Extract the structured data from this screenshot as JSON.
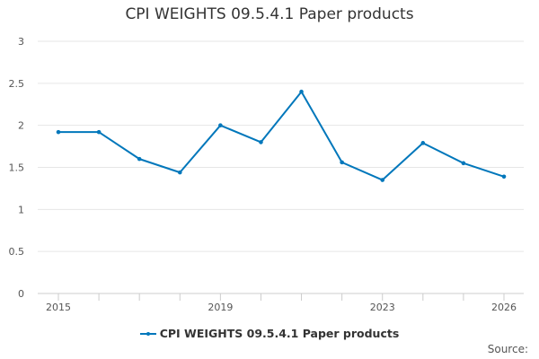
{
  "colors": {
    "series": "#0077bb",
    "grid": "#e6e6e6",
    "axis": "#cccccc"
  },
  "source_label": "Source:",
  "chart_data": {
    "type": "line",
    "title": "CPI WEIGHTS 09.5.4.1 Paper products",
    "xlabel": "",
    "ylabel": "",
    "x": [
      2015,
      2016,
      2017,
      2018,
      2019,
      2020,
      2021,
      2022,
      2023,
      2024,
      2025,
      2026
    ],
    "x_tick_labels": [
      "2015",
      "2019",
      "2023",
      "2026"
    ],
    "y_ticks": [
      0,
      0.5,
      1,
      1.5,
      2,
      2.5,
      3
    ],
    "y_tick_labels": [
      "0",
      "0.5",
      "1",
      "1.5",
      "2",
      "2.5",
      "3"
    ],
    "ylim": [
      0,
      3
    ],
    "grid": true,
    "legend_position": "bottom",
    "series": [
      {
        "name": "CPI WEIGHTS 09.5.4.1 Paper products",
        "values": [
          1.92,
          1.92,
          1.6,
          1.44,
          2.0,
          1.8,
          2.4,
          1.56,
          1.35,
          1.79,
          1.55,
          1.39
        ]
      }
    ]
  }
}
